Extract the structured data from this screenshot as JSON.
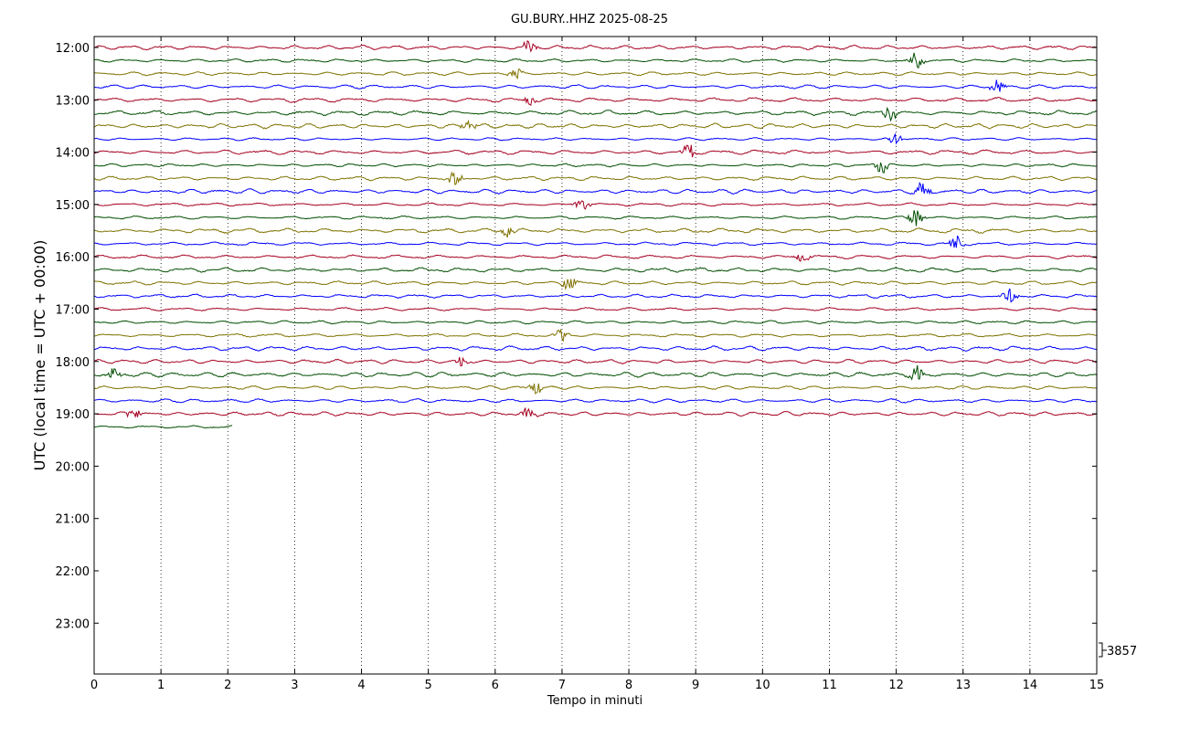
{
  "chart_data": {
    "type": "line",
    "subtype": "helicorder",
    "title": "GU.BURY..HHZ 2025-08-25",
    "xlabel": "Tempo in minuti",
    "ylabel": "UTC (local time = UTC + 00:00)",
    "xlim": [
      0,
      15
    ],
    "x_ticks": [
      "0",
      "1",
      "2",
      "3",
      "4",
      "5",
      "6",
      "7",
      "8",
      "9",
      "10",
      "11",
      "12",
      "13",
      "14",
      "15"
    ],
    "y_ticks": [
      "12:00",
      "13:00",
      "14:00",
      "15:00",
      "16:00",
      "17:00",
      "18:00",
      "19:00",
      "20:00",
      "21:00",
      "22:00",
      "23:00"
    ],
    "scale_label": "3857",
    "grid": "vertical dotted",
    "line_minutes": 15,
    "start_time": "12:00",
    "colors": [
      "#a50021",
      "#004d00",
      "#7f7200",
      "#0000ff"
    ],
    "traces": [
      {
        "start": "12:00",
        "end_minute": 15,
        "events": [
          {
            "minute": 6.5,
            "amplitude": 0.8
          }
        ]
      },
      {
        "start": "12:15",
        "end_minute": 15,
        "events": [
          {
            "minute": 12.3,
            "amplitude": 1.1
          }
        ]
      },
      {
        "start": "12:30",
        "end_minute": 15,
        "events": [
          {
            "minute": 6.3,
            "amplitude": 0.8
          }
        ]
      },
      {
        "start": "12:45",
        "end_minute": 15,
        "events": [
          {
            "minute": 13.5,
            "amplitude": 1.0
          }
        ]
      },
      {
        "start": "13:00",
        "end_minute": 15,
        "events": [
          {
            "minute": 6.5,
            "amplitude": 0.7
          }
        ]
      },
      {
        "start": "13:15",
        "end_minute": 15,
        "events": [
          {
            "minute": 11.9,
            "amplitude": 1.0
          }
        ]
      },
      {
        "start": "13:30",
        "end_minute": 15,
        "events": [
          {
            "minute": 5.6,
            "amplitude": 0.8
          }
        ]
      },
      {
        "start": "13:45",
        "end_minute": 15,
        "events": [
          {
            "minute": 12.0,
            "amplitude": 1.1
          }
        ]
      },
      {
        "start": "14:00",
        "end_minute": 15,
        "events": [
          {
            "minute": 8.9,
            "amplitude": 1.0
          }
        ]
      },
      {
        "start": "14:15",
        "end_minute": 15,
        "events": [
          {
            "minute": 11.8,
            "amplitude": 1.2
          }
        ]
      },
      {
        "start": "14:30",
        "end_minute": 15,
        "events": [
          {
            "minute": 5.4,
            "amplitude": 1.0
          }
        ]
      },
      {
        "start": "14:45",
        "end_minute": 15,
        "events": [
          {
            "minute": 12.4,
            "amplitude": 1.4
          }
        ]
      },
      {
        "start": "15:00",
        "end_minute": 15,
        "events": [
          {
            "minute": 7.3,
            "amplitude": 0.8
          }
        ]
      },
      {
        "start": "15:15",
        "end_minute": 15,
        "events": [
          {
            "minute": 12.3,
            "amplitude": 1.4
          }
        ]
      },
      {
        "start": "15:30",
        "end_minute": 15,
        "events": [
          {
            "minute": 6.2,
            "amplitude": 0.8
          }
        ]
      },
      {
        "start": "15:45",
        "end_minute": 15,
        "events": [
          {
            "minute": 12.9,
            "amplitude": 1.1
          }
        ]
      },
      {
        "start": "16:00",
        "end_minute": 15,
        "events": [
          {
            "minute": 10.6,
            "amplitude": 0.8
          }
        ]
      },
      {
        "start": "16:15",
        "end_minute": 15,
        "events": []
      },
      {
        "start": "16:30",
        "end_minute": 15,
        "events": [
          {
            "minute": 7.1,
            "amplitude": 1.0
          }
        ]
      },
      {
        "start": "16:45",
        "end_minute": 15,
        "events": [
          {
            "minute": 13.7,
            "amplitude": 1.0
          }
        ]
      },
      {
        "start": "17:00",
        "end_minute": 15,
        "events": []
      },
      {
        "start": "17:15",
        "end_minute": 15,
        "events": []
      },
      {
        "start": "17:30",
        "end_minute": 15,
        "events": [
          {
            "minute": 7.0,
            "amplitude": 0.9
          }
        ]
      },
      {
        "start": "17:45",
        "end_minute": 15,
        "events": []
      },
      {
        "start": "18:00",
        "end_minute": 15,
        "events": [
          {
            "minute": 5.5,
            "amplitude": 0.8
          }
        ]
      },
      {
        "start": "18:15",
        "end_minute": 15,
        "events": [
          {
            "minute": 0.3,
            "amplitude": 0.8
          },
          {
            "minute": 12.3,
            "amplitude": 1.2
          }
        ]
      },
      {
        "start": "18:30",
        "end_minute": 15,
        "events": [
          {
            "minute": 6.6,
            "amplitude": 1.0
          }
        ]
      },
      {
        "start": "18:45",
        "end_minute": 15,
        "events": []
      },
      {
        "start": "19:00",
        "end_minute": 15,
        "events": [
          {
            "minute": 0.6,
            "amplitude": 1.0
          },
          {
            "minute": 6.5,
            "amplitude": 0.8
          }
        ]
      },
      {
        "start": "19:15",
        "end_minute": 2.07,
        "events": []
      }
    ]
  }
}
